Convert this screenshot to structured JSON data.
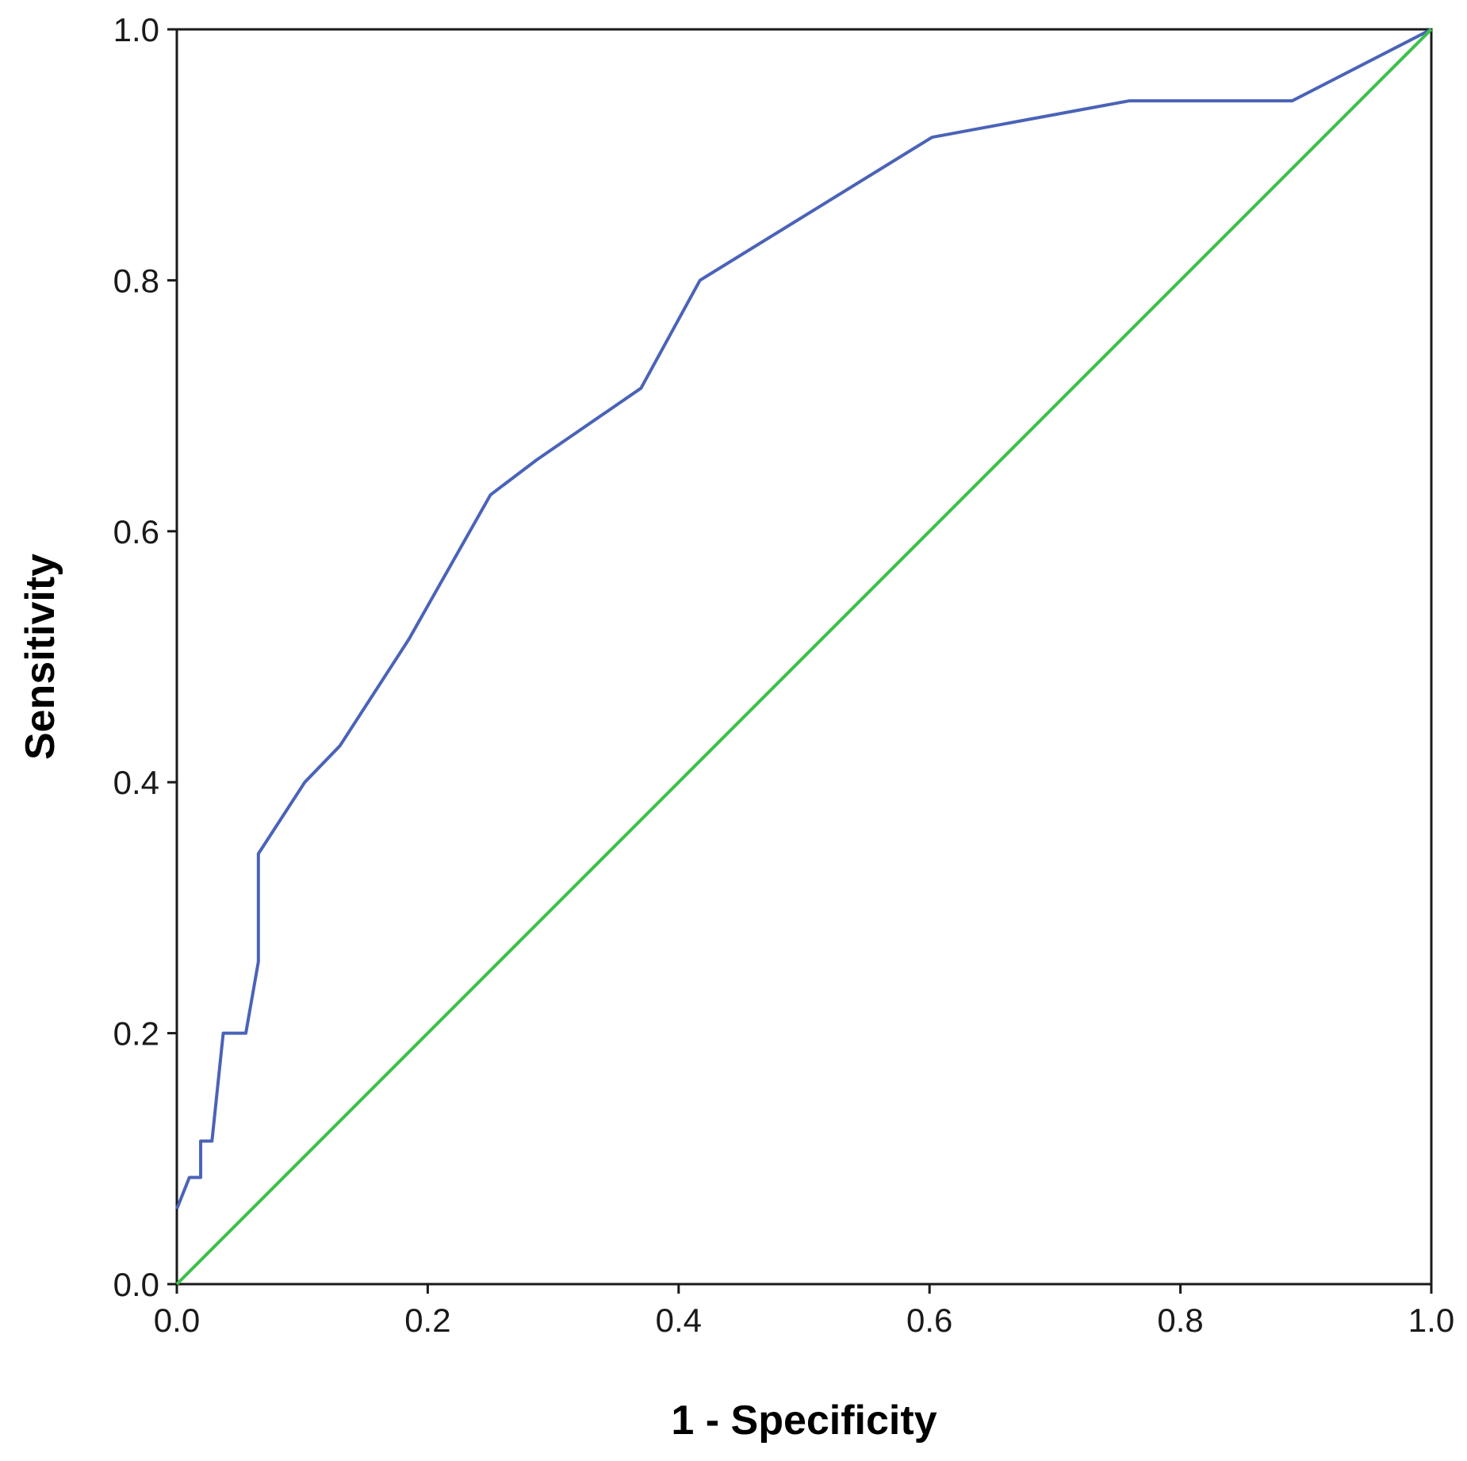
{
  "chart_data": {
    "type": "line",
    "title": "",
    "xlabel": "1 - Specificity",
    "ylabel": "Sensitivity",
    "xlim": [
      0.0,
      1.0
    ],
    "ylim": [
      0.0,
      1.0
    ],
    "x_ticks": [
      "0.0",
      "0.2",
      "0.4",
      "0.6",
      "0.8",
      "1.0"
    ],
    "y_ticks": [
      "0.0",
      "0.2",
      "0.4",
      "0.6",
      "0.8",
      "1.0"
    ],
    "grid": false,
    "legend": "none",
    "series": [
      {
        "color": "#4a63b8",
        "points": [
          [
            0.0,
            0.06
          ],
          [
            0.01,
            0.085
          ],
          [
            0.019,
            0.085
          ],
          [
            0.019,
            0.114
          ],
          [
            0.028,
            0.114
          ],
          [
            0.037,
            0.2
          ],
          [
            0.055,
            0.2
          ],
          [
            0.065,
            0.257
          ],
          [
            0.065,
            0.343
          ],
          [
            0.102,
            0.4
          ],
          [
            0.13,
            0.429
          ],
          [
            0.185,
            0.514
          ],
          [
            0.25,
            0.629
          ],
          [
            0.287,
            0.657
          ],
          [
            0.37,
            0.714
          ],
          [
            0.417,
            0.8
          ],
          [
            0.602,
            0.914
          ],
          [
            0.759,
            0.943
          ],
          [
            0.889,
            0.943
          ],
          [
            1.0,
            1.0
          ]
        ]
      },
      {
        "color": "#3cc04a",
        "points": [
          [
            0.0,
            0.0
          ],
          [
            1.0,
            1.0
          ]
        ]
      }
    ]
  }
}
